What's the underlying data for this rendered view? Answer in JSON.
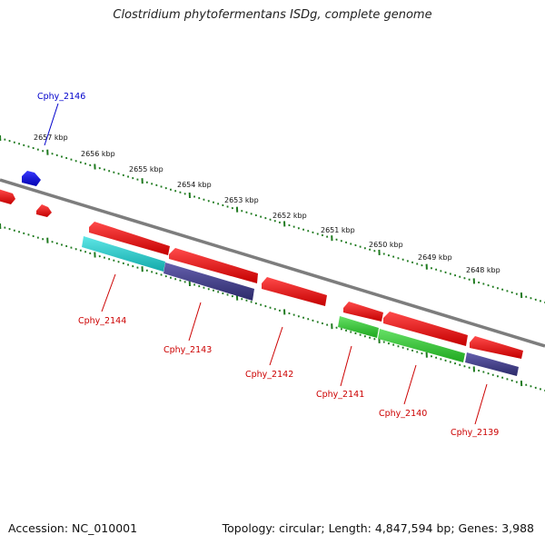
{
  "title": "Clostridium phytofermentans ISDg, complete genome",
  "footer": {
    "accession": "Accession: NC_010001",
    "summary": "Topology: circular; Length: 4,847,594 bp; Genes: 3,988"
  },
  "ruler_labels": [
    "2657 kbp",
    "2656 kbp",
    "2655 kbp",
    "2654 kbp",
    "2653 kbp",
    "2652 kbp",
    "2651 kbp",
    "2650 kbp",
    "2649 kbp",
    "2648 kbp"
  ],
  "gene_labels": [
    {
      "name": "Cphy_2146",
      "color": "#0000cc"
    },
    {
      "name": "Cphy_2144",
      "color": "#cc0000"
    },
    {
      "name": "Cphy_2143",
      "color": "#cc0000"
    },
    {
      "name": "Cphy_2142",
      "color": "#cc0000"
    },
    {
      "name": "Cphy_2141",
      "color": "#cc0000"
    },
    {
      "name": "Cphy_2140",
      "color": "#cc0000"
    },
    {
      "name": "Cphy_2139",
      "color": "#cc0000"
    }
  ],
  "colors": {
    "forward_gene": "#e8000b",
    "reverse_gene": "#1212e6",
    "cds_cyan": "#22cccc",
    "cds_purple": "#44408a",
    "cds_green": "#33cc33",
    "backbone": "#808080",
    "ruler_ticks": "#1f7a1f"
  }
}
